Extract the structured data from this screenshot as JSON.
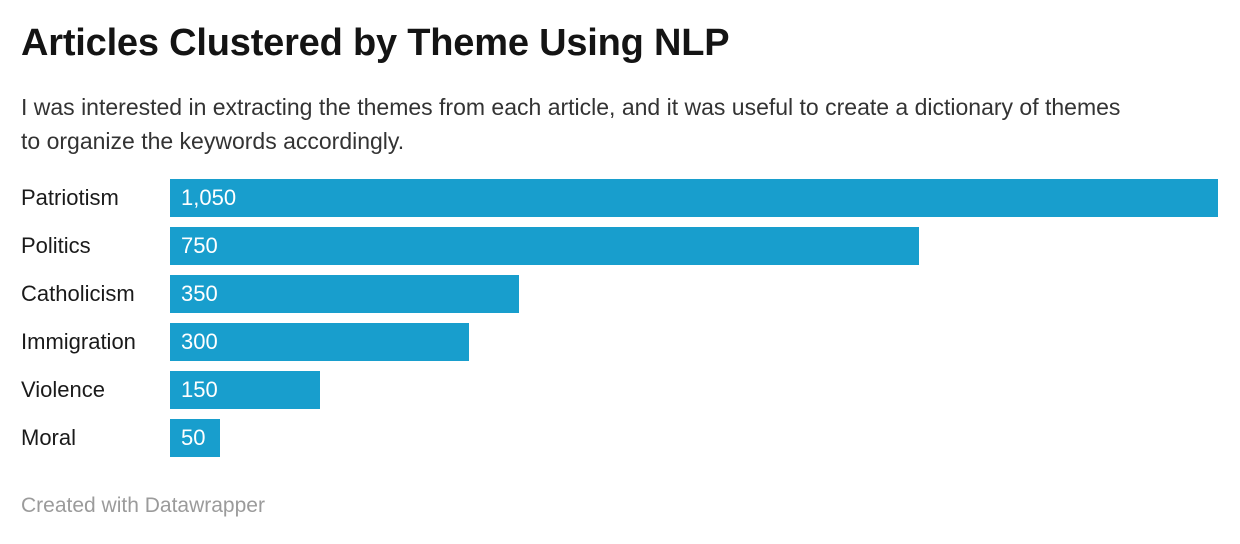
{
  "header": {
    "title": "Articles Clustered by Theme Using NLP",
    "description": "I was interested in extracting the themes from each article, and it was useful to create a dictionary of themes to organize the keywords accordingly."
  },
  "footer": {
    "attribution": "Created with Datawrapper"
  },
  "colors": {
    "accent": "#189ecd",
    "background": "#ffffff",
    "title_text": "#141414",
    "body_text": "#333333",
    "label_text": "#1a1a1a",
    "value_text": "#ffffff",
    "footer_text": "#9b9b9b"
  },
  "chart_data": {
    "type": "bar",
    "orientation": "horizontal",
    "title": "Articles Clustered by Theme Using NLP",
    "subtitle": "I was interested in extracting the themes from each article, and it was useful to create a dictionary of themes to organize the keywords accordingly.",
    "categories": [
      "Patriotism",
      "Politics",
      "Catholicism",
      "Immigration",
      "Violence",
      "Moral"
    ],
    "values": [
      1050,
      750,
      350,
      300,
      150,
      50
    ],
    "value_labels": [
      "1,050",
      "750",
      "350",
      "300",
      "150",
      "50"
    ],
    "xlim": [
      0,
      1050
    ],
    "xlabel": "",
    "ylabel": "",
    "grid": false,
    "legend_position": "none",
    "value_labels_inside_bars": true,
    "attribution": "Created with Datawrapper"
  }
}
